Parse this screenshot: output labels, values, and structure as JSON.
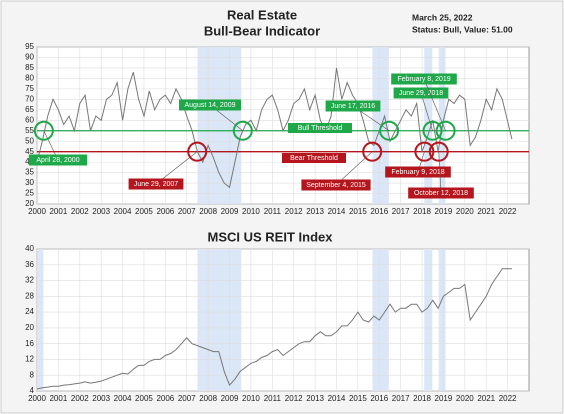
{
  "chart_data": [
    {
      "type": "line",
      "title": [
        "Real Estate",
        "Bull-Bear Indicator"
      ],
      "date": "March 25, 2022",
      "status": "Status: Bull, Value: 51.00",
      "xlim": [
        2000,
        2023
      ],
      "xticks": [
        2000,
        2001,
        2002,
        2003,
        2004,
        2005,
        2006,
        2007,
        2008,
        2009,
        2010,
        2011,
        2012,
        2013,
        2014,
        2015,
        2016,
        2017,
        2018,
        2019,
        2020,
        2021,
        2022
      ],
      "ylim": [
        20,
        95
      ],
      "yticks": [
        20,
        25,
        30,
        35,
        40,
        45,
        50,
        55,
        60,
        65,
        70,
        75,
        80,
        85,
        90,
        95
      ],
      "grid": true,
      "shaded": [
        [
          2007.5,
          2009.55
        ],
        [
          2015.68,
          2016.45
        ],
        [
          2018.1,
          2018.48
        ],
        [
          2018.78,
          2019.1
        ]
      ],
      "thresholds": [
        {
          "name": "Bull Threshold",
          "value": 55,
          "color": "#1fa84a"
        },
        {
          "name": "Bear Threshold",
          "value": 45,
          "color": "#b5151c"
        }
      ],
      "annotations": [
        {
          "text": "April 28, 2000",
          "x": 2000.32,
          "y": 55,
          "color": "#1fa84a"
        },
        {
          "text": "August 14, 2009",
          "x": 2009.62,
          "y": 55,
          "color": "#1fa84a"
        },
        {
          "text": "June 29, 2007",
          "x": 2007.49,
          "y": 45,
          "color": "#b5151c"
        },
        {
          "text": "June 17, 2016",
          "x": 2016.46,
          "y": 55,
          "color": "#1fa84a"
        },
        {
          "text": "September 4, 2015",
          "x": 2015.67,
          "y": 45,
          "color": "#b5151c"
        },
        {
          "text": "June 29, 2018",
          "x": 2018.49,
          "y": 55,
          "color": "#1fa84a"
        },
        {
          "text": "February 9, 2018",
          "x": 2018.11,
          "y": 45,
          "color": "#b5151c"
        },
        {
          "text": "February 8, 2019",
          "x": 2019.1,
          "y": 55,
          "color": "#1fa84a"
        },
        {
          "text": "October 12, 2018",
          "x": 2018.78,
          "y": 45,
          "color": "#b5151c"
        }
      ],
      "x": [
        2000,
        2000.25,
        2000.5,
        2000.75,
        2001,
        2001.25,
        2001.5,
        2001.75,
        2002,
        2002.25,
        2002.5,
        2002.75,
        2003,
        2003.25,
        2003.5,
        2003.75,
        2004,
        2004.25,
        2004.5,
        2004.75,
        2005,
        2005.25,
        2005.5,
        2005.75,
        2006,
        2006.25,
        2006.5,
        2006.75,
        2007,
        2007.25,
        2007.5,
        2007.75,
        2008,
        2008.25,
        2008.5,
        2008.75,
        2009,
        2009.25,
        2009.5,
        2009.75,
        2010,
        2010.25,
        2010.5,
        2010.75,
        2011,
        2011.25,
        2011.5,
        2011.75,
        2012,
        2012.25,
        2012.5,
        2012.75,
        2013,
        2013.25,
        2013.5,
        2013.75,
        2014,
        2014.25,
        2014.5,
        2014.75,
        2015,
        2015.25,
        2015.5,
        2015.75,
        2016,
        2016.25,
        2016.5,
        2016.75,
        2017,
        2017.25,
        2017.5,
        2017.75,
        2018,
        2018.25,
        2018.5,
        2018.75,
        2019,
        2019.25,
        2019.5,
        2019.75,
        2020,
        2020.25,
        2020.5,
        2020.75,
        2021,
        2021.25,
        2021.5,
        2021.75,
        2022.2
      ],
      "series": [
        {
          "name": "Bull-Bear Indicator",
          "color": "#777777",
          "values": [
            40,
            50,
            62,
            70,
            65,
            58,
            62,
            55,
            68,
            72,
            55,
            62,
            60,
            70,
            72,
            78,
            60,
            75,
            83,
            70,
            62,
            74,
            65,
            70,
            72,
            68,
            75,
            70,
            62,
            55,
            45,
            40,
            48,
            42,
            35,
            30,
            28,
            40,
            52,
            58,
            60,
            55,
            65,
            70,
            72,
            65,
            55,
            60,
            68,
            70,
            75,
            65,
            72,
            60,
            55,
            62,
            85,
            70,
            78,
            72,
            68,
            60,
            50,
            48,
            55,
            62,
            50,
            55,
            60,
            65,
            62,
            68,
            45,
            52,
            60,
            45,
            60,
            70,
            68,
            72,
            70,
            48,
            52,
            60,
            70,
            65,
            75,
            70,
            51
          ]
        }
      ]
    },
    {
      "type": "line",
      "title": "MSCI US REIT Index",
      "xlim": [
        2000,
        2023
      ],
      "xticks": [
        2000,
        2001,
        2002,
        2003,
        2004,
        2005,
        2006,
        2007,
        2008,
        2009,
        2010,
        2011,
        2012,
        2013,
        2014,
        2015,
        2016,
        2017,
        2018,
        2019,
        2020,
        2021,
        2022
      ],
      "ylim": [
        4,
        40
      ],
      "yticks": [
        4,
        8,
        12,
        16,
        20,
        24,
        28,
        32,
        36,
        40
      ],
      "grid": true,
      "shaded": [
        [
          2000.05,
          2000.3
        ],
        [
          2007.5,
          2009.55
        ],
        [
          2015.68,
          2016.45
        ],
        [
          2018.1,
          2018.48
        ],
        [
          2018.78,
          2019.1
        ]
      ],
      "x": [
        2000,
        2000.25,
        2000.5,
        2000.75,
        2001,
        2001.25,
        2001.5,
        2001.75,
        2002,
        2002.25,
        2002.5,
        2002.75,
        2003,
        2003.25,
        2003.5,
        2003.75,
        2004,
        2004.25,
        2004.5,
        2004.75,
        2005,
        2005.25,
        2005.5,
        2005.75,
        2006,
        2006.25,
        2006.5,
        2006.75,
        2007,
        2007.25,
        2007.5,
        2007.75,
        2008,
        2008.25,
        2008.5,
        2008.75,
        2009,
        2009.25,
        2009.5,
        2009.75,
        2010,
        2010.25,
        2010.5,
        2010.75,
        2011,
        2011.25,
        2011.5,
        2011.75,
        2012,
        2012.25,
        2012.5,
        2012.75,
        2013,
        2013.25,
        2013.5,
        2013.75,
        2014,
        2014.25,
        2014.5,
        2014.75,
        2015,
        2015.25,
        2015.5,
        2015.75,
        2016,
        2016.25,
        2016.5,
        2016.75,
        2017,
        2017.25,
        2017.5,
        2017.75,
        2018,
        2018.25,
        2018.5,
        2018.75,
        2019,
        2019.25,
        2019.5,
        2019.75,
        2020,
        2020.25,
        2020.5,
        2020.75,
        2021,
        2021.25,
        2021.5,
        2021.75,
        2022.2
      ],
      "series": [
        {
          "name": "MSCI US REIT Index",
          "color": "#777777",
          "values": [
            4.5,
            4.8,
            5,
            5.2,
            5.2,
            5.5,
            5.6,
            5.8,
            6,
            6.3,
            6,
            6.2,
            6.5,
            7,
            7.5,
            8,
            8.5,
            8.3,
            9.5,
            10.5,
            10.5,
            11.5,
            12,
            12,
            13,
            13.5,
            14.5,
            16,
            17.5,
            16,
            15.5,
            15,
            14.5,
            14,
            14,
            9,
            5.5,
            7,
            9,
            10,
            11,
            11.5,
            12.5,
            13,
            14,
            14.5,
            13,
            14,
            15,
            16,
            16.5,
            16.5,
            18,
            19,
            18,
            18,
            19,
            20.5,
            20.5,
            22,
            24,
            22,
            21.5,
            23,
            22,
            24,
            26,
            24,
            25,
            25,
            26,
            26,
            24,
            25,
            27,
            25,
            28,
            29,
            30,
            30,
            31,
            22,
            24,
            26,
            28,
            31,
            33,
            35,
            35
          ]
        }
      ]
    }
  ]
}
